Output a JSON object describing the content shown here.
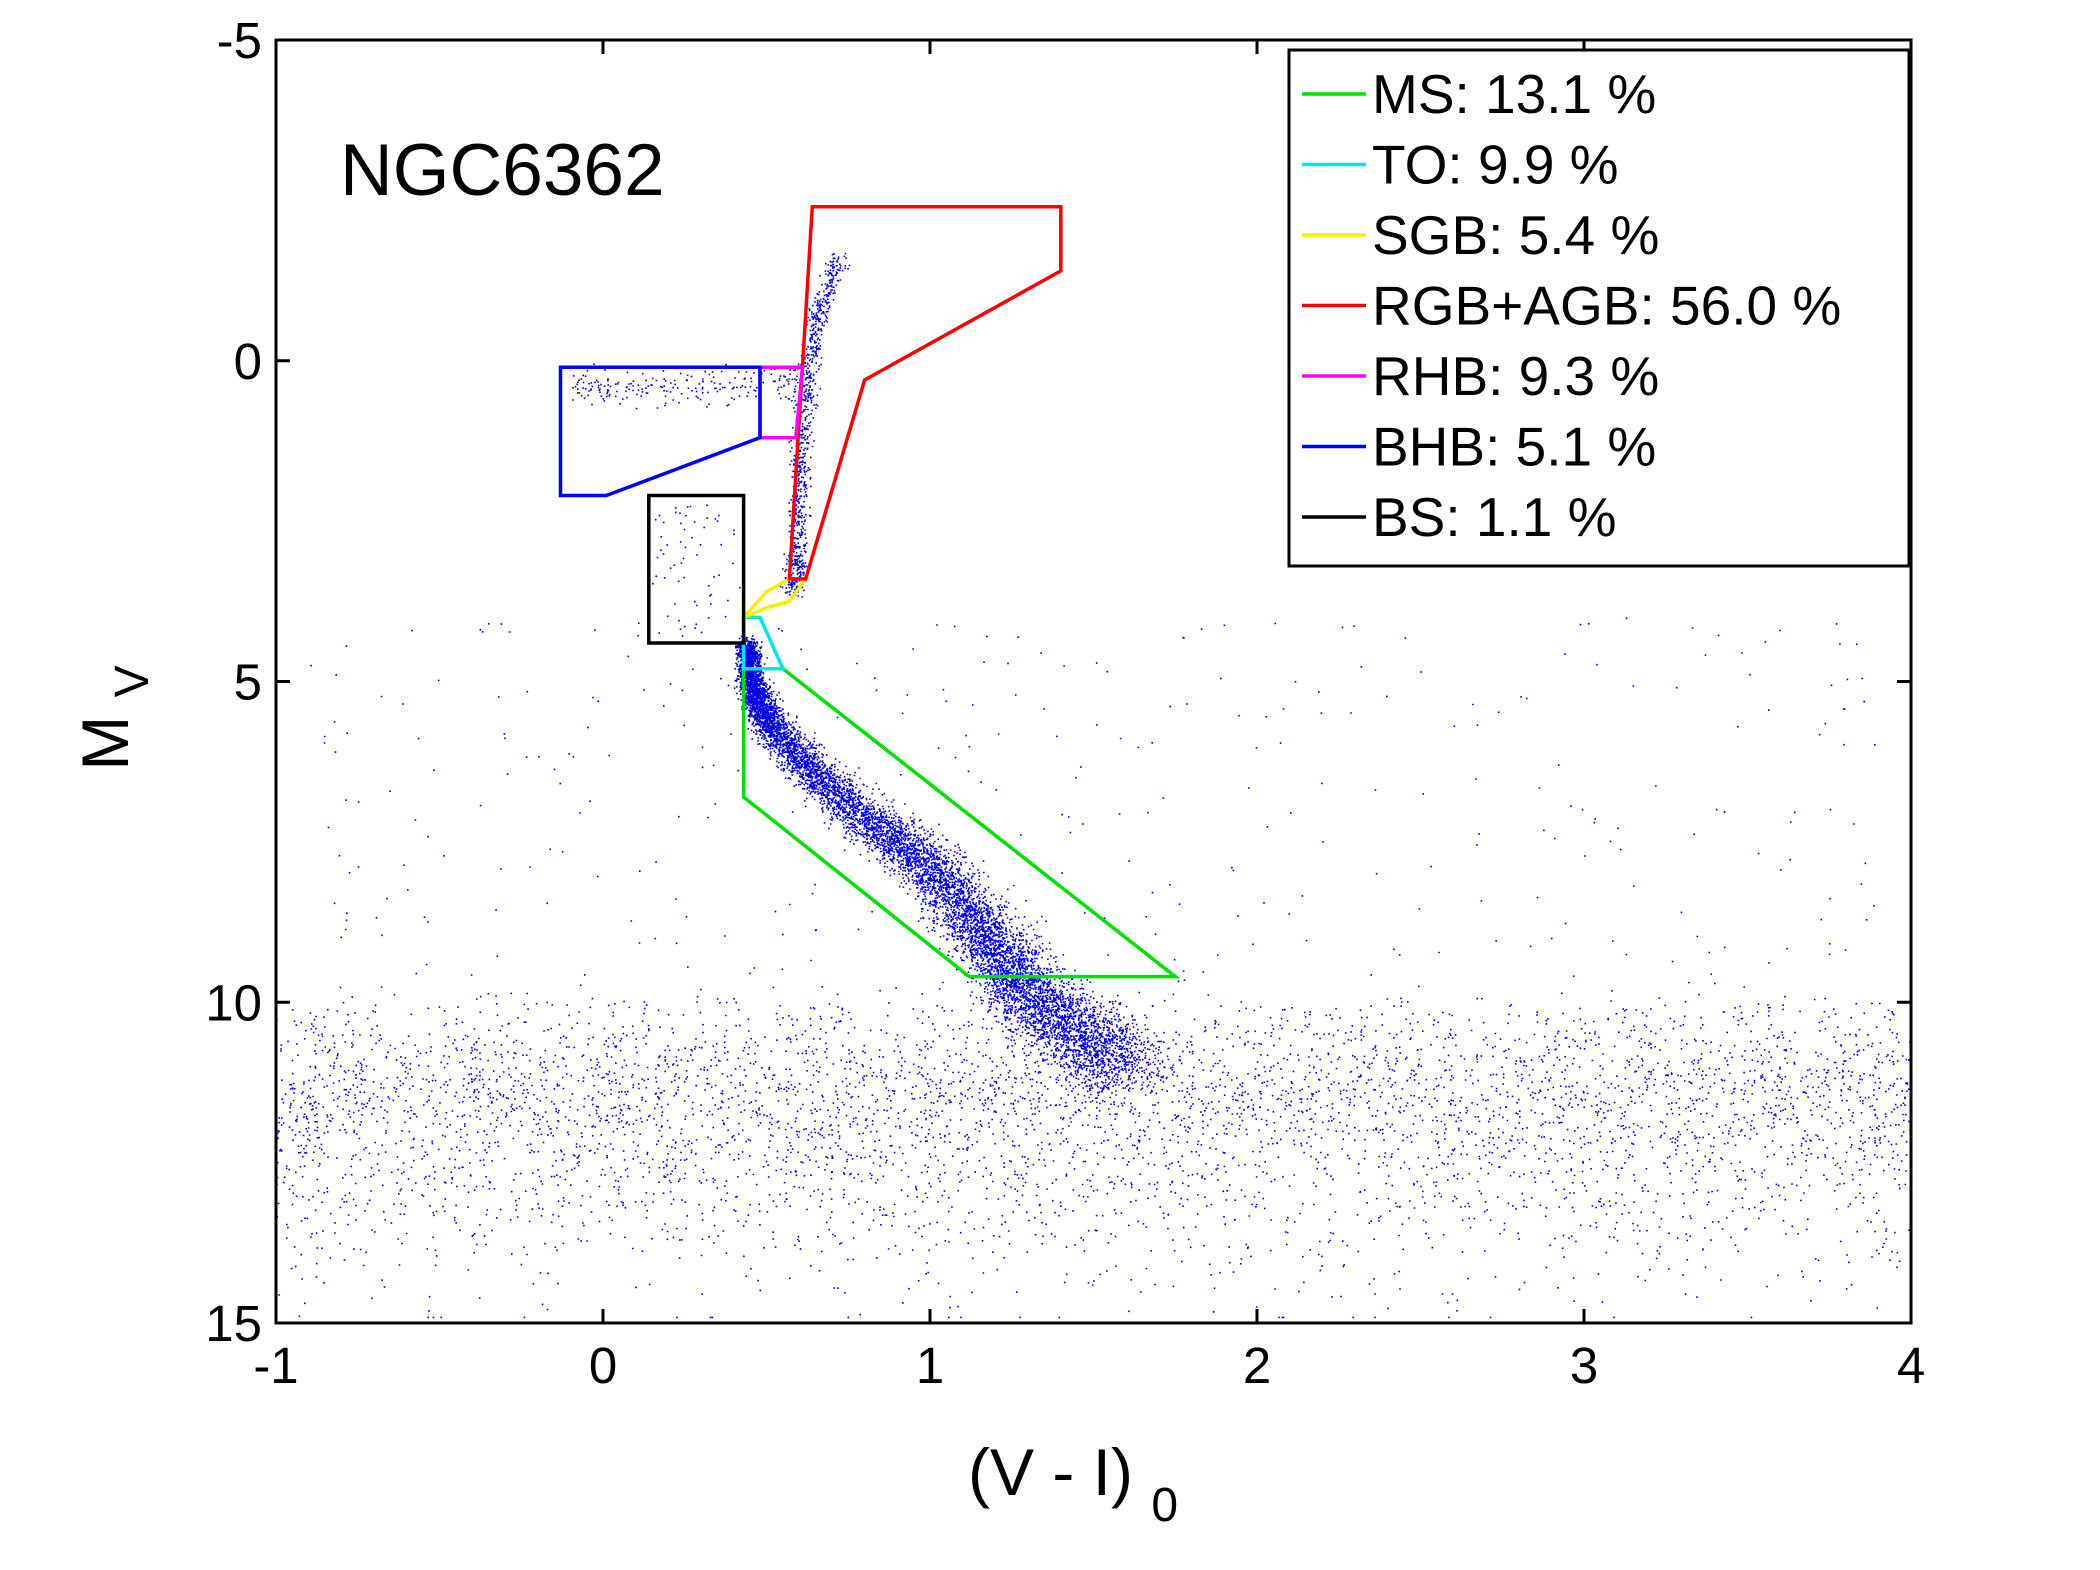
{
  "chart_data": {
    "type": "scatter",
    "title": "",
    "annotation": "NGC6362",
    "xlabel": {
      "main": "(V - I)",
      "sub": "0"
    },
    "ylabel": {
      "main": "M",
      "sub": "V"
    },
    "xlim": [
      -1,
      4
    ],
    "ylim": [
      15,
      -5
    ],
    "y_inverted": true,
    "grid": false,
    "legend_position": "top-right",
    "x_ticks": [
      -1,
      0,
      1,
      2,
      3,
      4
    ],
    "x_tick_labels": [
      "-1",
      "0",
      "1",
      "2",
      "3",
      "4"
    ],
    "y_ticks": [
      -5,
      0,
      5,
      10,
      15
    ],
    "y_tick_labels": [
      "-5",
      "0",
      "5",
      "10",
      "15"
    ],
    "point_color": "#0000e0",
    "legend": [
      {
        "label": "MS: 13.1 %",
        "color": "#00e000"
      },
      {
        "label": "TO: 9.9 %",
        "color": "#00e5ee"
      },
      {
        "label": "SGB: 5.4 %",
        "color": "#f2f200"
      },
      {
        "label": "RGB+AGB: 56.0 %",
        "color": "#ff0000"
      },
      {
        "label": "RHB: 9.3 %",
        "color": "#ff00ff"
      },
      {
        "label": "BHB: 5.1 %",
        "color": "#0000ff"
      },
      {
        "label": "BS: 1.1 %",
        "color": "#000000"
      }
    ],
    "regions": [
      {
        "name": "MS",
        "color": "#00e000",
        "points": [
          [
            0.43,
            4.8
          ],
          [
            0.55,
            4.8
          ],
          [
            1.75,
            9.6
          ],
          [
            1.12,
            9.6
          ],
          [
            0.43,
            6.8
          ]
        ]
      },
      {
        "name": "TO",
        "color": "#00e5ee",
        "points": [
          [
            0.43,
            4.0
          ],
          [
            0.48,
            4.0
          ],
          [
            0.55,
            4.8
          ],
          [
            0.43,
            4.8
          ]
        ]
      },
      {
        "name": "SGB",
        "color": "#f2f200",
        "points": [
          [
            0.43,
            4.0
          ],
          [
            0.5,
            3.6
          ],
          [
            0.57,
            3.4
          ],
          [
            0.62,
            3.4
          ],
          [
            0.57,
            3.75
          ],
          [
            0.5,
            3.85
          ]
        ]
      },
      {
        "name": "RGB+AGB",
        "color": "#ff0000",
        "points": [
          [
            0.57,
            3.4
          ],
          [
            0.64,
            -2.4
          ],
          [
            1.4,
            -2.4
          ],
          [
            1.4,
            -1.4
          ],
          [
            0.8,
            0.3
          ],
          [
            0.62,
            3.4
          ]
        ]
      },
      {
        "name": "RHB",
        "color": "#ff00ff",
        "points": [
          [
            0.48,
            0.1
          ],
          [
            0.61,
            0.1
          ],
          [
            0.59,
            1.2
          ],
          [
            0.48,
            1.2
          ]
        ]
      },
      {
        "name": "BHB",
        "color": "#0000ff",
        "points": [
          [
            -0.13,
            0.1
          ],
          [
            0.48,
            0.1
          ],
          [
            0.48,
            1.2
          ],
          [
            0.01,
            2.1
          ],
          [
            -0.13,
            2.1
          ]
        ]
      },
      {
        "name": "BS",
        "color": "#000000",
        "points": [
          [
            0.14,
            2.1
          ],
          [
            0.43,
            2.1
          ],
          [
            0.43,
            4.4
          ],
          [
            0.14,
            4.4
          ]
        ]
      }
    ],
    "population_samples": {
      "main_sequence_ridge": [
        [
          0.44,
          4.4
        ],
        [
          0.45,
          5.0
        ],
        [
          0.5,
          5.6
        ],
        [
          0.62,
          6.3
        ],
        [
          0.8,
          7.1
        ],
        [
          0.98,
          7.8
        ],
        [
          1.12,
          8.6
        ],
        [
          1.22,
          9.3
        ],
        [
          1.3,
          9.9
        ],
        [
          1.45,
          10.5
        ],
        [
          1.6,
          11.0
        ]
      ],
      "red_giant_branch": [
        [
          0.58,
          3.6
        ],
        [
          0.59,
          3.0
        ],
        [
          0.6,
          2.0
        ],
        [
          0.61,
          1.0
        ],
        [
          0.63,
          0.0
        ],
        [
          0.66,
          -0.8
        ],
        [
          0.72,
          -1.6
        ]
      ],
      "field_extent": {
        "x": [
          -1.0,
          4.0
        ],
        "y": [
          10.0,
          15.0
        ]
      }
    }
  }
}
